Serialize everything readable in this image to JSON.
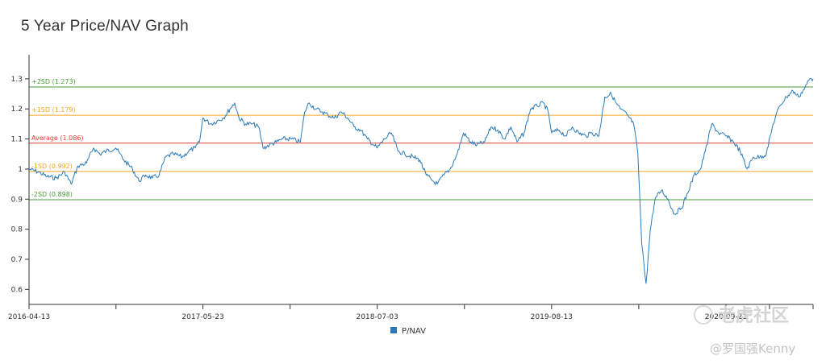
{
  "chart_data": {
    "type": "line",
    "title": "5 Year Price/NAV Graph",
    "xlabel": "",
    "ylabel": "",
    "x_range": [
      "2016-04-13",
      "2021-04-13"
    ],
    "ylim": [
      0.55,
      1.38
    ],
    "y_ticks": [
      "0.6",
      "0.7",
      "0.8",
      "0.9",
      "1",
      "1.1",
      "1.2",
      "1.3"
    ],
    "x_ticks": [
      "2016-04-13",
      "2017-05-23",
      "2018-07-03",
      "2019-08-13",
      "2020-09-22"
    ],
    "grid": false,
    "legend": {
      "position": "bottom-center",
      "entries": [
        "P/NAV"
      ]
    },
    "series": [
      {
        "name": "P/NAV",
        "color": "#2b7bb9",
        "points": [
          [
            "2016-04-13",
            1.0
          ],
          [
            "2016-05-05",
            0.99
          ],
          [
            "2016-05-25",
            0.975
          ],
          [
            "2016-06-15",
            0.97
          ],
          [
            "2016-07-05",
            0.99
          ],
          [
            "2016-07-20",
            0.95
          ],
          [
            "2016-08-05",
            1.01
          ],
          [
            "2016-08-25",
            1.02
          ],
          [
            "2016-09-10",
            1.07
          ],
          [
            "2016-09-25",
            1.05
          ],
          [
            "2016-10-10",
            1.06
          ],
          [
            "2016-11-01",
            1.07
          ],
          [
            "2016-11-20",
            1.03
          ],
          [
            "2016-12-10",
            1.0
          ],
          [
            "2016-12-25",
            0.96
          ],
          [
            "2017-01-10",
            0.98
          ],
          [
            "2017-01-25",
            0.97
          ],
          [
            "2017-02-10",
            0.98
          ],
          [
            "2017-02-25",
            1.04
          ],
          [
            "2017-03-15",
            1.05
          ],
          [
            "2017-04-05",
            1.04
          ],
          [
            "2017-04-20",
            1.06
          ],
          [
            "2017-05-05",
            1.07
          ],
          [
            "2017-05-15",
            1.09
          ],
          [
            "2017-05-23",
            1.17
          ],
          [
            "2017-06-10",
            1.15
          ],
          [
            "2017-06-25",
            1.16
          ],
          [
            "2017-07-10",
            1.17
          ],
          [
            "2017-07-25",
            1.2
          ],
          [
            "2017-08-05",
            1.22
          ],
          [
            "2017-08-15",
            1.17
          ],
          [
            "2017-08-30",
            1.15
          ],
          [
            "2017-09-15",
            1.15
          ],
          [
            "2017-09-30",
            1.14
          ],
          [
            "2017-10-10",
            1.07
          ],
          [
            "2017-10-25",
            1.08
          ],
          [
            "2017-11-10",
            1.09
          ],
          [
            "2017-11-25",
            1.1
          ],
          [
            "2017-12-15",
            1.1
          ],
          [
            "2018-01-05",
            1.09
          ],
          [
            "2018-01-15",
            1.19
          ],
          [
            "2018-01-25",
            1.22
          ],
          [
            "2018-02-10",
            1.2
          ],
          [
            "2018-02-25",
            1.19
          ],
          [
            "2018-03-10",
            1.18
          ],
          [
            "2018-03-25",
            1.17
          ],
          [
            "2018-04-10",
            1.19
          ],
          [
            "2018-04-25",
            1.17
          ],
          [
            "2018-05-10",
            1.14
          ],
          [
            "2018-05-25",
            1.13
          ],
          [
            "2018-06-10",
            1.1
          ],
          [
            "2018-06-25",
            1.08
          ],
          [
            "2018-07-03",
            1.07
          ],
          [
            "2018-07-20",
            1.1
          ],
          [
            "2018-08-05",
            1.12
          ],
          [
            "2018-08-20",
            1.06
          ],
          [
            "2018-09-05",
            1.05
          ],
          [
            "2018-09-25",
            1.04
          ],
          [
            "2018-10-10",
            1.03
          ],
          [
            "2018-10-25",
            0.98
          ],
          [
            "2018-11-10",
            0.96
          ],
          [
            "2018-11-20",
            0.95
          ],
          [
            "2018-12-05",
            0.98
          ],
          [
            "2018-12-20",
            1.0
          ],
          [
            "2019-01-05",
            1.05
          ],
          [
            "2019-01-20",
            1.12
          ],
          [
            "2019-02-05",
            1.09
          ],
          [
            "2019-02-20",
            1.08
          ],
          [
            "2019-03-10",
            1.09
          ],
          [
            "2019-03-25",
            1.14
          ],
          [
            "2019-04-10",
            1.13
          ],
          [
            "2019-04-25",
            1.1
          ],
          [
            "2019-05-10",
            1.14
          ],
          [
            "2019-05-25",
            1.09
          ],
          [
            "2019-06-10",
            1.12
          ],
          [
            "2019-06-25",
            1.2
          ],
          [
            "2019-07-10",
            1.21
          ],
          [
            "2019-07-25",
            1.22
          ],
          [
            "2019-08-05",
            1.19
          ],
          [
            "2019-08-13",
            1.12
          ],
          [
            "2019-08-30",
            1.13
          ],
          [
            "2019-09-15",
            1.11
          ],
          [
            "2019-09-30",
            1.14
          ],
          [
            "2019-10-15",
            1.12
          ],
          [
            "2019-11-01",
            1.11
          ],
          [
            "2019-11-15",
            1.12
          ],
          [
            "2019-12-01",
            1.11
          ],
          [
            "2019-12-15",
            1.24
          ],
          [
            "2019-12-30",
            1.25
          ],
          [
            "2020-01-10",
            1.22
          ],
          [
            "2020-01-20",
            1.2
          ],
          [
            "2020-02-05",
            1.18
          ],
          [
            "2020-02-20",
            1.15
          ],
          [
            "2020-03-01",
            1.05
          ],
          [
            "2020-03-10",
            0.75
          ],
          [
            "2020-03-20",
            0.62
          ],
          [
            "2020-03-30",
            0.8
          ],
          [
            "2020-04-10",
            0.9
          ],
          [
            "2020-04-25",
            0.93
          ],
          [
            "2020-05-10",
            0.9
          ],
          [
            "2020-05-25",
            0.85
          ],
          [
            "2020-06-10",
            0.87
          ],
          [
            "2020-06-25",
            0.92
          ],
          [
            "2020-07-10",
            0.98
          ],
          [
            "2020-07-25",
            1.0
          ],
          [
            "2020-08-05",
            1.06
          ],
          [
            "2020-08-20",
            1.15
          ],
          [
            "2020-09-05",
            1.12
          ],
          [
            "2020-09-22",
            1.11
          ],
          [
            "2020-10-10",
            1.09
          ],
          [
            "2020-10-25",
            1.06
          ],
          [
            "2020-11-10",
            1.0
          ],
          [
            "2020-11-25",
            1.04
          ],
          [
            "2020-12-10",
            1.04
          ],
          [
            "2020-12-25",
            1.05
          ],
          [
            "2021-01-10",
            1.15
          ],
          [
            "2021-01-25",
            1.21
          ],
          [
            "2021-02-10",
            1.24
          ],
          [
            "2021-02-25",
            1.26
          ],
          [
            "2021-03-10",
            1.24
          ],
          [
            "2021-03-25",
            1.27
          ],
          [
            "2021-04-05",
            1.3
          ],
          [
            "2021-04-13",
            1.3
          ]
        ]
      }
    ],
    "reference_lines": [
      {
        "label": "+2SD (1.273)",
        "value": 1.273,
        "color": "#4a9a3a"
      },
      {
        "label": "+1SD (1.179)",
        "value": 1.179,
        "color": "#f5a623"
      },
      {
        "label": "Average (1.086)",
        "value": 1.086,
        "color": "#e03c31"
      },
      {
        "label": "-1SD (0.992)",
        "value": 0.992,
        "color": "#f5a623"
      },
      {
        "label": "-2SD (0.898)",
        "value": 0.898,
        "color": "#4a9a3a"
      }
    ]
  },
  "watermark": {
    "brand": "老虎社区",
    "user": "@罗国强Kenny"
  }
}
